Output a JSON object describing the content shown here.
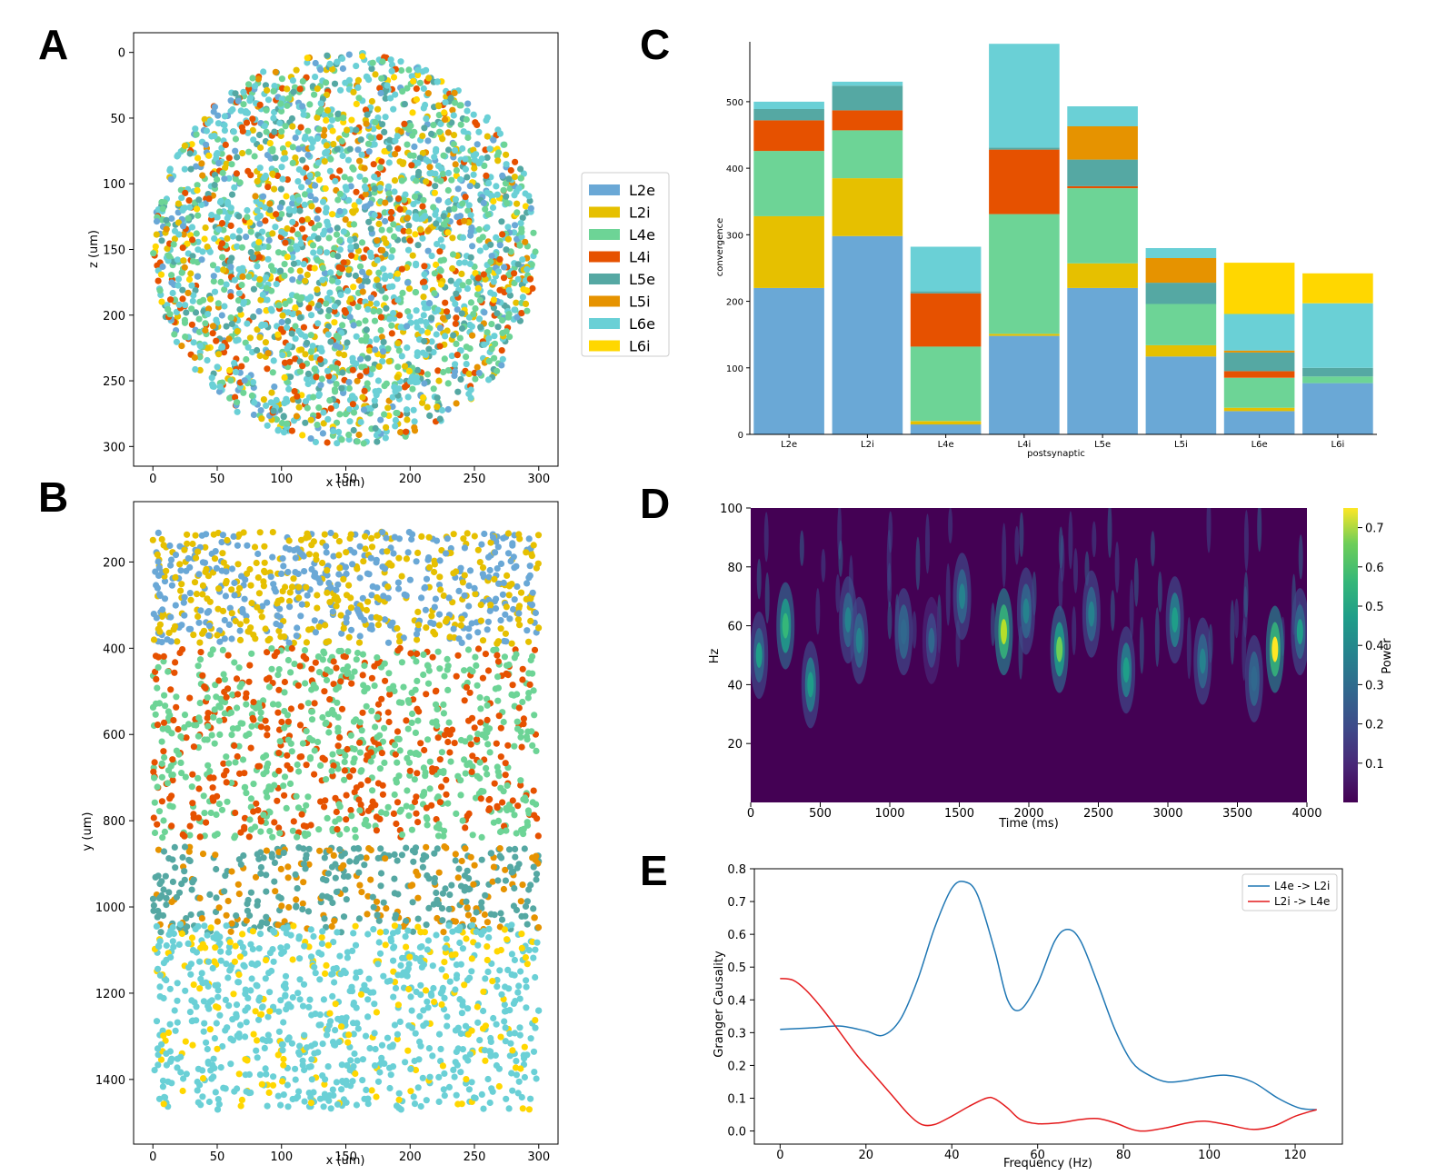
{
  "panels": {
    "A": "A",
    "B": "B",
    "C": "C",
    "D": "D",
    "E": "E"
  },
  "colors": {
    "L2e": "#6aa8d6",
    "L2i": "#e6c000",
    "L4e": "#6dd496",
    "L4i": "#e65100",
    "L5e": "#55a8a3",
    "L5i": "#e69300",
    "L6e": "#6ad0d6",
    "L6i": "#ffd700"
  },
  "chart_data": [
    {
      "id": "A",
      "type": "scatter",
      "xlabel": "x (um)",
      "ylabel": "z (um)",
      "xlim": [
        -15,
        315
      ],
      "ylim": [
        315,
        -15
      ],
      "xticks": [
        0,
        50,
        100,
        150,
        200,
        250,
        300
      ],
      "yticks": [
        0,
        50,
        100,
        150,
        200,
        250,
        300
      ],
      "description_of_points": "cells uniformly filling a disk of radius 150 centered at (150,150)",
      "center": [
        150,
        150
      ],
      "radius": 150,
      "legend": [
        "L2e",
        "L2i",
        "L4e",
        "L4i",
        "L5e",
        "L5i",
        "L6e",
        "L6i"
      ],
      "legend_position": "right"
    },
    {
      "id": "B",
      "type": "scatter",
      "xlabel": "x (um)",
      "ylabel": "y (um)",
      "xlim": [
        -15,
        315
      ],
      "ylim": [
        1550,
        60
      ],
      "xticks": [
        0,
        50,
        100,
        150,
        200,
        250,
        300
      ],
      "yticks": [
        200,
        400,
        600,
        800,
        1000,
        1200,
        1400
      ],
      "layers": [
        {
          "types": [
            "L2e",
            "L2i"
          ],
          "y_range": [
            130,
            390
          ],
          "weights": [
            0.55,
            0.45
          ]
        },
        {
          "types": [
            "L4e",
            "L4i"
          ],
          "y_range": [
            400,
            840
          ],
          "weights": [
            0.6,
            0.4
          ]
        },
        {
          "types": [
            "L5e",
            "L5i"
          ],
          "y_range": [
            860,
            1060
          ],
          "weights": [
            0.7,
            0.3
          ]
        },
        {
          "types": [
            "L6e",
            "L6i"
          ],
          "y_range": [
            1040,
            1470
          ],
          "weights": [
            0.8,
            0.2
          ]
        }
      ]
    },
    {
      "id": "C",
      "type": "bar",
      "xlabel": "postsynaptic",
      "ylabel": "convergence",
      "ylim": [
        0,
        590
      ],
      "yticks": [
        0,
        100,
        200,
        300,
        400,
        500
      ],
      "categories": [
        "L2e",
        "L2i",
        "L4e",
        "L4i",
        "L5e",
        "L5i",
        "L6e",
        "L6i"
      ],
      "series": [
        {
          "name": "L2e",
          "values": [
            220,
            298,
            15,
            148,
            220,
            117,
            35,
            77
          ]
        },
        {
          "name": "L2i",
          "values": [
            108,
            87,
            5,
            3,
            37,
            17,
            5,
            0
          ]
        },
        {
          "name": "L4e",
          "values": [
            98,
            72,
            112,
            180,
            113,
            62,
            45,
            10
          ]
        },
        {
          "name": "L4i",
          "values": [
            46,
            30,
            80,
            97,
            3,
            0,
            10,
            0
          ]
        },
        {
          "name": "L5e",
          "values": [
            17,
            37,
            3,
            3,
            40,
            32,
            28,
            13
          ]
        },
        {
          "name": "L5i",
          "values": [
            0,
            0,
            0,
            0,
            50,
            37,
            3,
            0
          ]
        },
        {
          "name": "L6e",
          "values": [
            11,
            6,
            67,
            156,
            30,
            15,
            55,
            97
          ]
        },
        {
          "name": "L6i",
          "values": [
            0,
            0,
            0,
            0,
            0,
            0,
            77,
            45
          ]
        }
      ]
    },
    {
      "id": "D",
      "type": "heatmap",
      "xlabel": "Time (ms)",
      "ylabel": "Hz",
      "xlim": [
        0,
        4000
      ],
      "ylim": [
        0,
        100
      ],
      "xticks": [
        0,
        500,
        1000,
        1500,
        2000,
        2500,
        3000,
        3500,
        4000
      ],
      "yticks": [
        20,
        40,
        60,
        80,
        100
      ],
      "colorbar_label": "Power",
      "colorbar_ticks": [
        0.1,
        0.2,
        0.3,
        0.4,
        0.5,
        0.6,
        0.7
      ],
      "colorbar_range": [
        0,
        0.75
      ],
      "bursts": [
        {
          "t": 60,
          "f": 50,
          "p": 0.38
        },
        {
          "t": 250,
          "f": 60,
          "p": 0.5
        },
        {
          "t": 430,
          "f": 40,
          "p": 0.45
        },
        {
          "t": 700,
          "f": 62,
          "p": 0.3
        },
        {
          "t": 780,
          "f": 55,
          "p": 0.32
        },
        {
          "t": 1100,
          "f": 58,
          "p": 0.28
        },
        {
          "t": 1300,
          "f": 55,
          "p": 0.25
        },
        {
          "t": 1520,
          "f": 70,
          "p": 0.35
        },
        {
          "t": 1820,
          "f": 58,
          "p": 0.65
        },
        {
          "t": 1980,
          "f": 65,
          "p": 0.35
        },
        {
          "t": 2220,
          "f": 52,
          "p": 0.55
        },
        {
          "t": 2450,
          "f": 64,
          "p": 0.33
        },
        {
          "t": 2700,
          "f": 45,
          "p": 0.42
        },
        {
          "t": 3050,
          "f": 62,
          "p": 0.4
        },
        {
          "t": 3250,
          "f": 48,
          "p": 0.3
        },
        {
          "t": 3620,
          "f": 42,
          "p": 0.28
        },
        {
          "t": 3770,
          "f": 52,
          "p": 0.72
        },
        {
          "t": 3950,
          "f": 58,
          "p": 0.38
        }
      ]
    },
    {
      "id": "E",
      "type": "line",
      "xlabel": "Frequency (Hz)",
      "ylabel": "Granger Causality",
      "xlim": [
        -6,
        131
      ],
      "ylim": [
        -0.04,
        0.8
      ],
      "xticks": [
        0,
        20,
        40,
        60,
        80,
        100,
        120
      ],
      "yticks": [
        0.0,
        0.1,
        0.2,
        0.3,
        0.4,
        0.5,
        0.6,
        0.7,
        0.8
      ],
      "legend_position": "top-right",
      "series": [
        {
          "name": "L4e -> L2i",
          "color": "#1f77b4",
          "x": [
            0,
            8,
            14,
            20,
            24,
            28,
            32,
            36,
            40,
            43,
            46,
            50,
            53,
            56,
            60,
            64,
            67,
            70,
            74,
            78,
            82,
            86,
            90,
            94,
            98,
            104,
            110,
            116,
            121,
            125
          ],
          "y": [
            0.31,
            0.315,
            0.32,
            0.305,
            0.292,
            0.34,
            0.46,
            0.62,
            0.74,
            0.76,
            0.72,
            0.55,
            0.4,
            0.37,
            0.45,
            0.58,
            0.615,
            0.58,
            0.45,
            0.31,
            0.21,
            0.17,
            0.15,
            0.153,
            0.162,
            0.17,
            0.15,
            0.1,
            0.07,
            0.065
          ]
        },
        {
          "name": "L2i -> L4e",
          "color": "#e41a1c",
          "x": [
            0,
            3,
            6,
            10,
            14,
            18,
            22,
            26,
            30,
            33,
            36,
            40,
            44,
            48,
            50,
            53,
            56,
            60,
            65,
            70,
            74,
            78,
            82,
            85,
            90,
            95,
            99,
            104,
            110,
            115,
            120,
            125
          ],
          "y": [
            0.465,
            0.46,
            0.43,
            0.37,
            0.3,
            0.23,
            0.17,
            0.11,
            0.05,
            0.02,
            0.02,
            0.045,
            0.075,
            0.1,
            0.098,
            0.07,
            0.035,
            0.022,
            0.025,
            0.035,
            0.038,
            0.025,
            0.005,
            0.0,
            0.01,
            0.025,
            0.03,
            0.02,
            0.005,
            0.015,
            0.045,
            0.065
          ]
        }
      ]
    }
  ]
}
